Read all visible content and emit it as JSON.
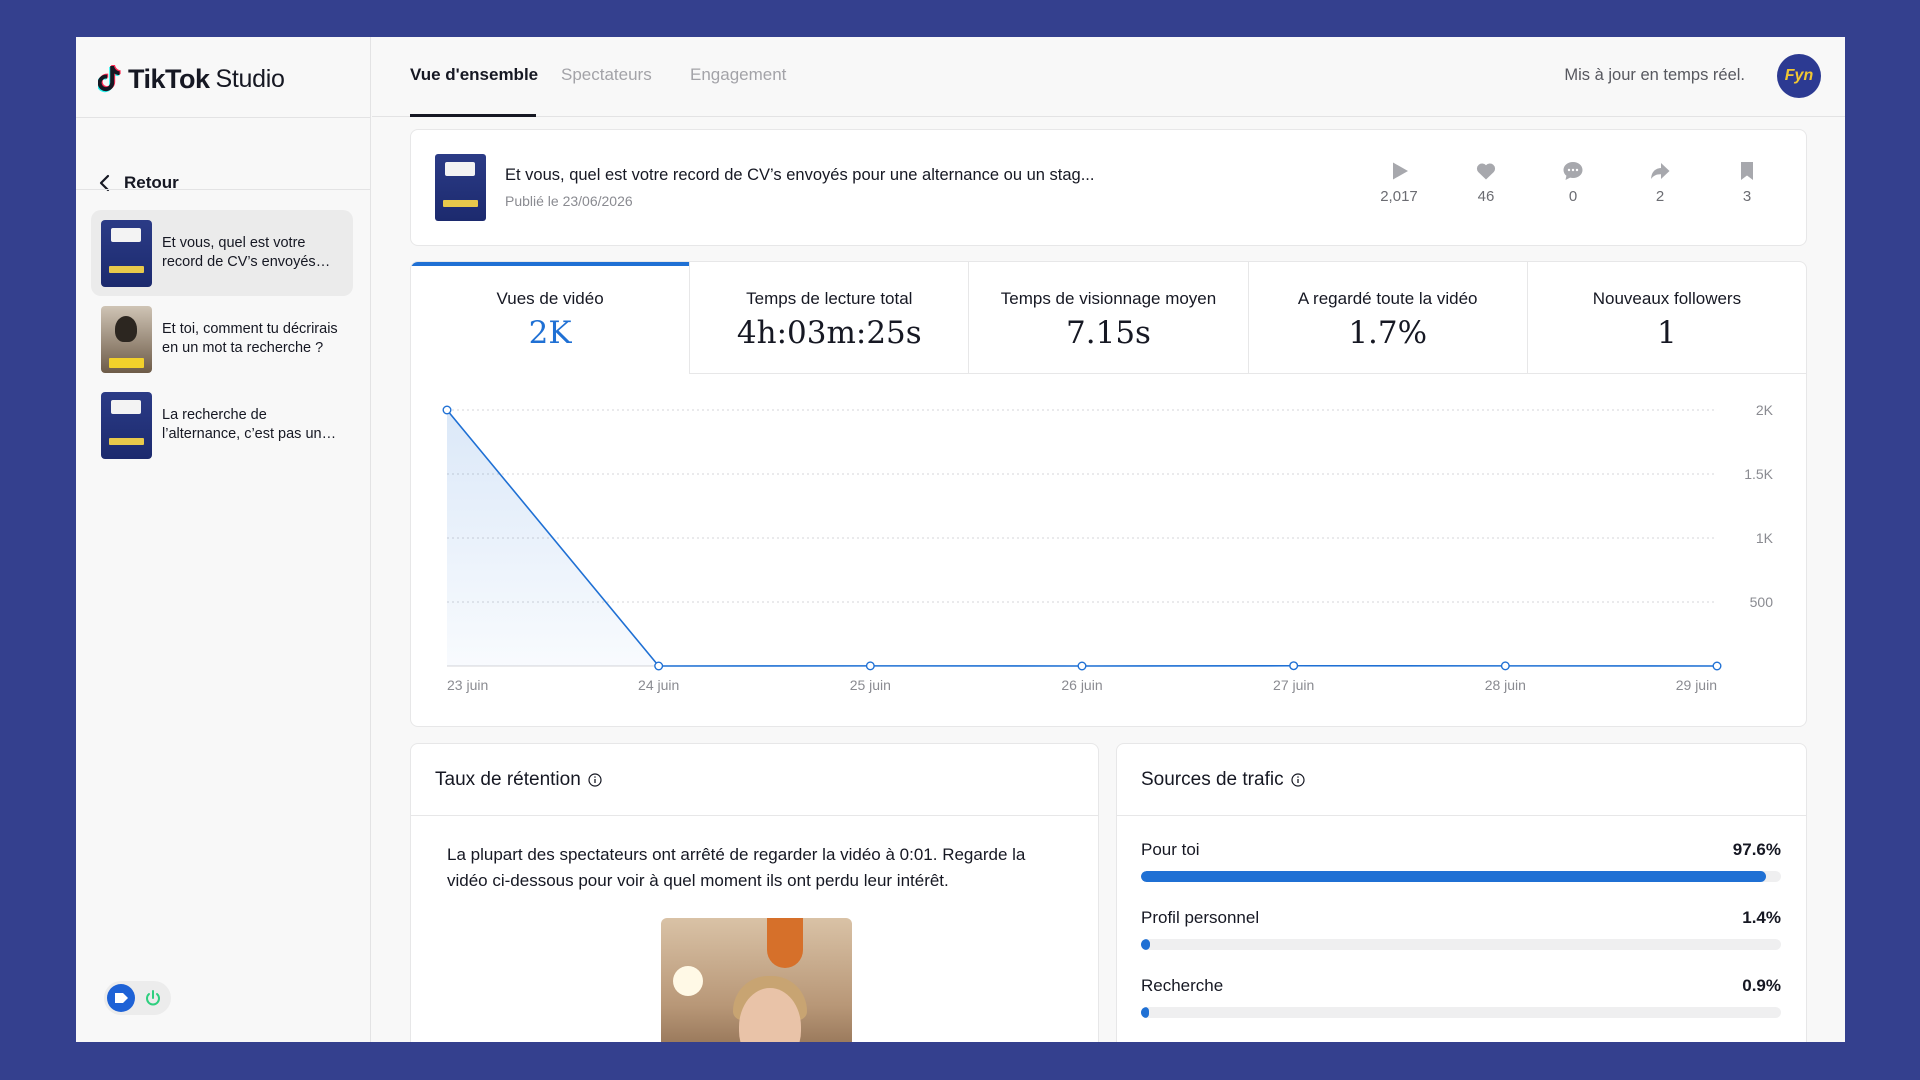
{
  "app": {
    "brand": "TikTok",
    "product": "Studio"
  },
  "sidebar": {
    "back_label": "Retour",
    "videos": [
      {
        "title": "Et vous, quel est votre record de CV’s envoyés pour une alternance ou un stage ?",
        "active": true
      },
      {
        "title": "Et toi, comment tu décrirais en un mot ta recherche ?",
        "active": false
      },
      {
        "title": "La recherche de l’alternance, c’est pas un long fleuve tranquille",
        "active": false
      }
    ]
  },
  "tabs": [
    {
      "label": "Vue d'ensemble",
      "active": true
    },
    {
      "label": "Spectateurs",
      "active": false
    },
    {
      "label": "Engagement",
      "active": false
    }
  ],
  "header": {
    "realtime_label": "Mis à jour en temps réel.",
    "avatar_text": "Fyn"
  },
  "post": {
    "title": "Et vous, quel est votre record de CV’s envoyés pour une alternance ou un stag...",
    "published": "Publié le 23/06/2026",
    "stats": {
      "views": "2,017",
      "likes": "46",
      "comments": "0",
      "shares": "2",
      "saves": "3"
    }
  },
  "metrics": [
    {
      "label": "Vues de vidéo",
      "value": "2K",
      "active": true
    },
    {
      "label": "Temps de lecture total",
      "value": "4h:03m:25s",
      "active": false
    },
    {
      "label": "Temps de visionnage moyen",
      "value": "7.15s",
      "active": false
    },
    {
      "label": "A regardé toute la vidéo",
      "value": "1.7%",
      "active": false
    },
    {
      "label": "Nouveaux followers",
      "value": "1",
      "active": false
    }
  ],
  "chart_data": {
    "type": "area",
    "x": [
      "23 juin",
      "24 juin",
      "25 juin",
      "26 juin",
      "27 juin",
      "28 juin",
      "29 juin"
    ],
    "values": [
      2000,
      0,
      1,
      0,
      2,
      1,
      0
    ],
    "ylim": [
      0,
      2000
    ],
    "yticks": [
      500,
      1000,
      1500,
      2000
    ],
    "ytick_labels": [
      "500",
      "1K",
      "1.5K",
      "2K"
    ],
    "grid": true,
    "color": "#1f70d4"
  },
  "retention": {
    "title": "Taux de rétention",
    "text": "La plupart des spectateurs ont arrêté de regarder la vidéo à 0:01. Regarde la vidéo ci-dessous pour voir à quel moment ils ont perdu leur intérêt."
  },
  "traffic": {
    "title": "Sources de trafic",
    "sources": [
      {
        "label": "Pour toi",
        "pct_label": "97.6%",
        "pct": 97.6
      },
      {
        "label": "Profil personnel",
        "pct_label": "1.4%",
        "pct": 1.4
      },
      {
        "label": "Recherche",
        "pct_label": "0.9%",
        "pct": 0.9
      }
    ]
  },
  "colors": {
    "accent": "#1f70d4",
    "background": "#34408e",
    "text": "#161823"
  }
}
